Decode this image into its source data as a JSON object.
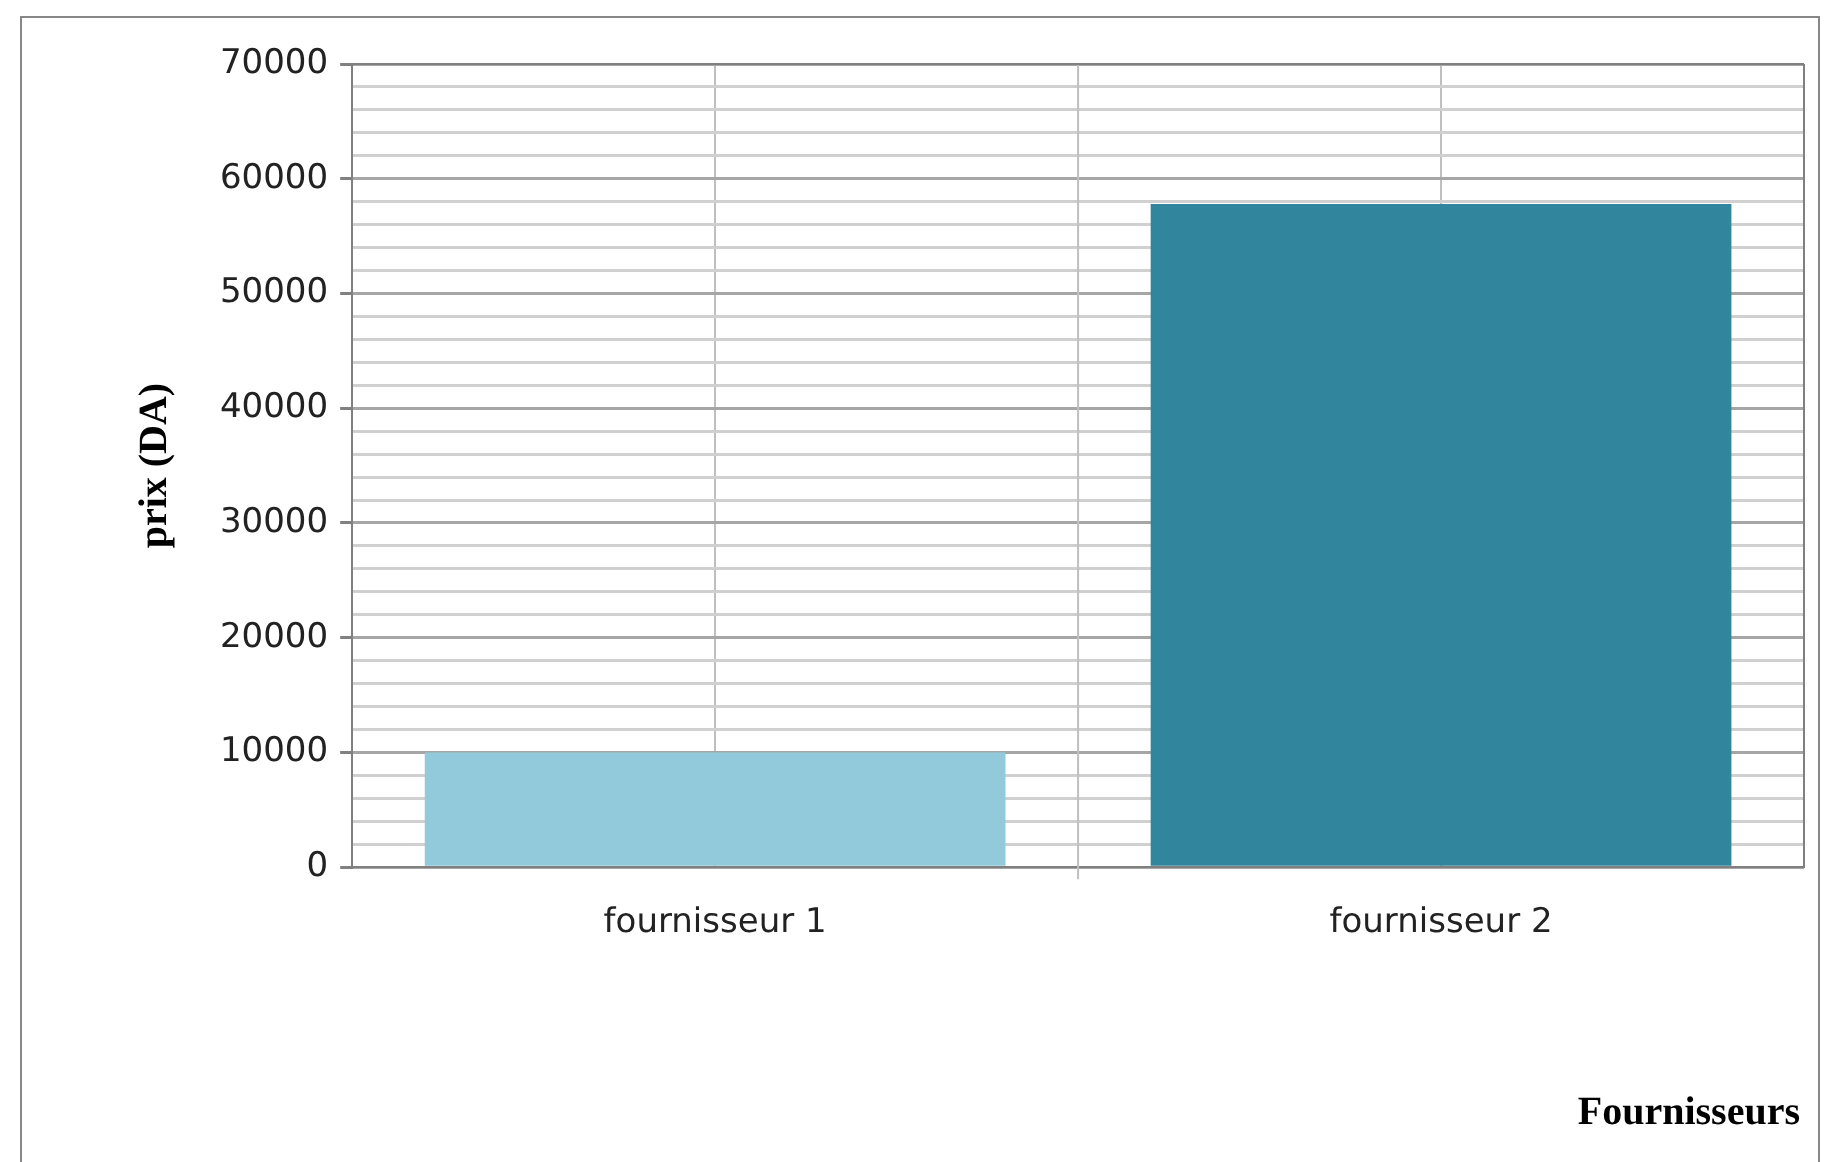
{
  "chart_data": {
    "type": "bar",
    "xlabel": "Fournisseurs",
    "ylabel": "prix (DA)",
    "categories": [
      "fournisseur 1",
      "fournisseur 2"
    ],
    "values": [
      10000,
      57800
    ],
    "colors": [
      "#92cadb",
      "#31859c"
    ],
    "ylim": [
      0,
      70000
    ],
    "yticks": [
      0,
      {
        "value": 2000,
        "label": null
      },
      {
        "value": 4000,
        "label": null
      },
      {
        "value": 6000,
        "label": null
      },
      {
        "value": 8000,
        "label": null
      },
      10000,
      {
        "value": 12000,
        "label": null
      },
      {
        "value": 14000,
        "label": null
      },
      {
        "value": 16000,
        "label": null
      },
      {
        "value": 18000,
        "label": null
      },
      20000,
      {
        "value": 22000,
        "label": null
      },
      {
        "value": 24000,
        "label": null
      },
      {
        "value": 26000,
        "label": null
      },
      {
        "value": 28000,
        "label": null
      },
      30000,
      {
        "value": 32000,
        "label": null
      },
      {
        "value": 34000,
        "label": null
      },
      {
        "value": 36000,
        "label": null
      },
      {
        "value": 38000,
        "label": null
      },
      40000,
      {
        "value": 42000,
        "label": null
      },
      {
        "value": 44000,
        "label": null
      },
      {
        "value": 46000,
        "label": null
      },
      {
        "value": 48000,
        "label": null
      },
      50000,
      {
        "value": 52000,
        "label": null
      },
      {
        "value": 54000,
        "label": null
      },
      {
        "value": 56000,
        "label": null
      },
      {
        "value": 58000,
        "label": null
      },
      60000,
      {
        "value": 62000,
        "label": null
      },
      {
        "value": 64000,
        "label": null
      },
      {
        "value": 66000,
        "label": null
      },
      {
        "value": 68000,
        "label": null
      },
      70000
    ],
    "grid": true
  }
}
